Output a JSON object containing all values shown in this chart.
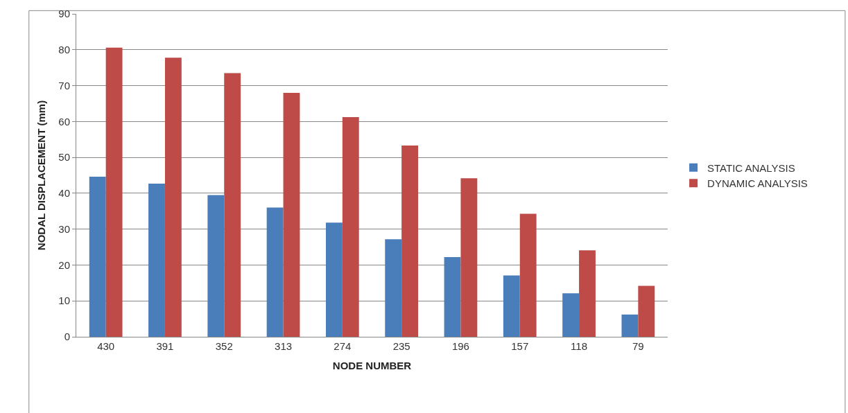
{
  "chart_data": {
    "type": "bar",
    "xlabel": "NODE NUMBER",
    "ylabel": "NODAL DISPLACEMENT (mm)",
    "categories": [
      "430",
      "391",
      "352",
      "313",
      "274",
      "235",
      "196",
      "157",
      "118",
      "79"
    ],
    "series": [
      {
        "name": "STATIC ANALYSIS",
        "color": "#4a7ebb",
        "values": [
          44.6,
          42.7,
          39.5,
          36,
          31.8,
          27.2,
          22.2,
          17.1,
          12.1,
          6.2
        ]
      },
      {
        "name": "DYNAMIC ANALYSIS",
        "color": "#be4b48",
        "values": [
          80.6,
          77.8,
          73.5,
          68,
          61.2,
          53.3,
          44.2,
          34.3,
          24.1,
          14.2
        ]
      }
    ],
    "ylim": [
      0,
      90
    ],
    "yticks": [
      0,
      10,
      20,
      30,
      40,
      50,
      60,
      70,
      80,
      90
    ],
    "grid": "y",
    "legend": "right"
  }
}
